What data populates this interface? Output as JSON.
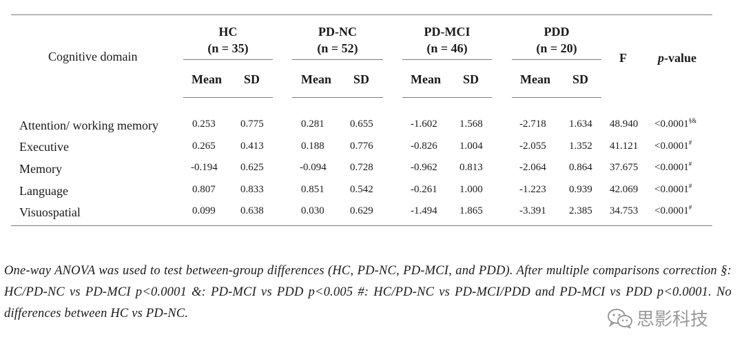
{
  "table": {
    "domain_header": "Cognitive domain",
    "groups": [
      {
        "name": "HC",
        "n": "(n = 35)"
      },
      {
        "name": "PD-NC",
        "n": "(n = 52)"
      },
      {
        "name": "PD-MCI",
        "n": "(n = 46)"
      },
      {
        "name": "PDD",
        "n": "(n = 20)"
      }
    ],
    "mean_label": "Mean",
    "sd_label": "SD",
    "f_label": "F",
    "p_label_italic": "p",
    "p_label_rest": "-value",
    "rows": [
      {
        "domain": "Attention/ working memory",
        "values": [
          "0.253",
          "0.775",
          "0.281",
          "0.655",
          "-1.602",
          "1.568",
          "-2.718",
          "1.634"
        ],
        "f": "48.940",
        "p": "<0.0001",
        "p_sup": "§&"
      },
      {
        "domain": "Executive",
        "values": [
          "0.265",
          "0.413",
          "0.188",
          "0.776",
          "-0.826",
          "1.004",
          "-2.055",
          "1.352"
        ],
        "f": "41.121",
        "p": "<0.0001",
        "p_sup": "#"
      },
      {
        "domain": "Memory",
        "values": [
          "-0.194",
          "0.625",
          "-0.094",
          "0.728",
          "-0.962",
          "0.813",
          "-2.064",
          "0.864"
        ],
        "f": "37.675",
        "p": "<0.0001",
        "p_sup": "#"
      },
      {
        "domain": "Language",
        "values": [
          "0.807",
          "0.833",
          "0.851",
          "0.542",
          "-0.261",
          "1.000",
          "-1.223",
          "0.939"
        ],
        "f": "42.069",
        "p": "<0.0001",
        "p_sup": "#"
      },
      {
        "domain": "Visuospatial",
        "values": [
          "0.099",
          "0.638",
          "0.030",
          "0.629",
          "-1.494",
          "1.865",
          "-3.391",
          "2.385"
        ],
        "f": "34.753",
        "p": "<0.0001",
        "p_sup": "#"
      }
    ]
  },
  "caption": "One-way ANOVA was used to test between-group differences (HC, PD-NC, PD-MCI, and PDD). After multiple comparisons correction §: HC/PD-NC vs PD-MCI p<0.0001 &: PD-MCI vs PDD p<0.005 #: HC/PD-NC vs PD-MCI/PDD and PD-MCI vs PDD p<0.0001. No differences between HC vs PD-NC.",
  "watermark": {
    "text": "思影科技",
    "icon": "wechat-icon"
  }
}
